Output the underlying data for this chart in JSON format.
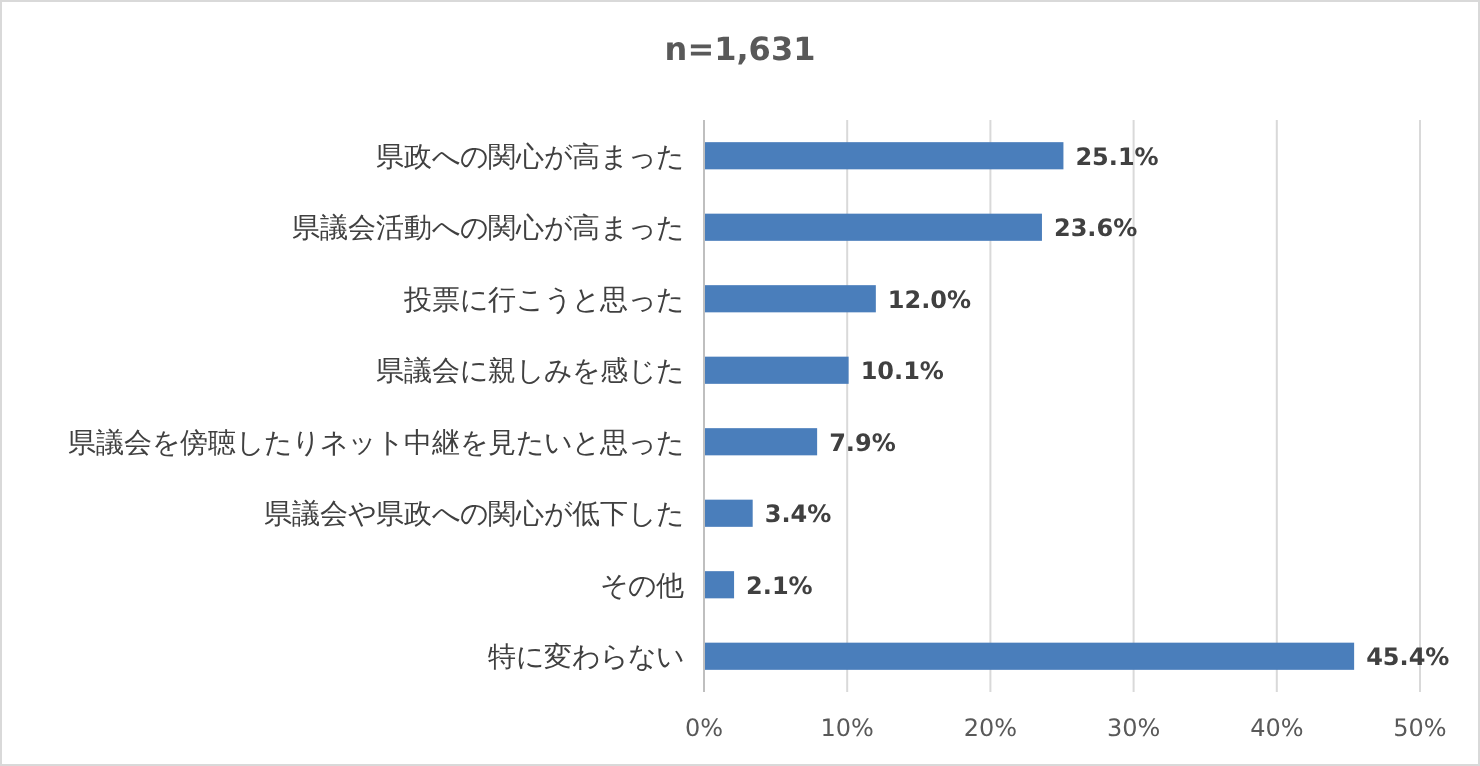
{
  "chart_data": {
    "type": "bar",
    "orientation": "horizontal",
    "title": "n=1,631",
    "categories": [
      "県政への関心が高まった",
      "県議会活動への関心が高まった",
      "投票に行こうと思った",
      "県議会に親しみを感じた",
      "県議会を傍聴したりネット中継を見たいと思った",
      "県議会や県政への関心が低下した",
      "その他",
      "特に変わらない"
    ],
    "values": [
      25.1,
      23.6,
      12.0,
      10.1,
      7.9,
      3.4,
      2.1,
      45.4
    ],
    "value_labels": [
      "25.1%",
      "23.6%",
      "12.0%",
      "10.1%",
      "7.9%",
      "3.4%",
      "2.1%",
      "45.4%"
    ],
    "color": "#4a7ebb",
    "xlim": [
      0,
      50
    ],
    "xticks": [
      {
        "value": 0,
        "label": "0%"
      },
      {
        "value": 10,
        "label": "10%"
      },
      {
        "value": 20,
        "label": "20%"
      },
      {
        "value": 30,
        "label": "30%"
      },
      {
        "value": 40,
        "label": "40%"
      },
      {
        "value": 50,
        "label": "50%"
      }
    ],
    "grid": "x"
  }
}
